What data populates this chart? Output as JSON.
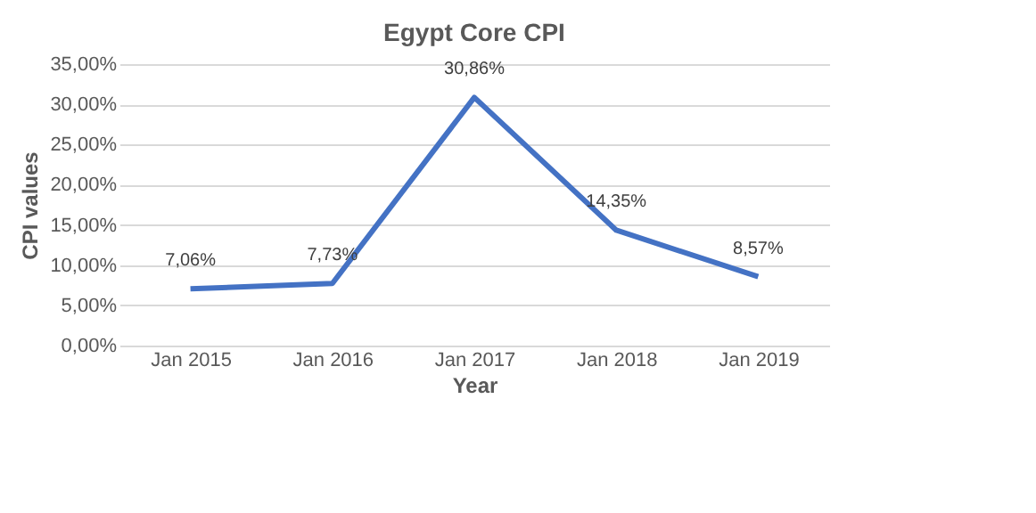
{
  "chart_data": {
    "type": "line",
    "title": "Egypt Core CPI",
    "xlabel": "Year",
    "ylabel": "CPI values",
    "categories": [
      "Jan 2015",
      "Jan 2016",
      "Jan 2017",
      "Jan 2018",
      "Jan 2019"
    ],
    "series": [
      {
        "color": "#4472c4",
        "values": [
          7.06,
          7.73,
          30.86,
          14.35,
          8.57
        ],
        "value_labels": [
          "7,06%",
          "7,73%",
          "30,86%",
          "14,35%",
          "8,57%"
        ]
      }
    ],
    "ylim": [
      0,
      35
    ],
    "yticks": [
      {
        "value": 0,
        "label": "0,00%"
      },
      {
        "value": 5,
        "label": "5,00%"
      },
      {
        "value": 10,
        "label": "10,00%"
      },
      {
        "value": 15,
        "label": "15,00%"
      },
      {
        "value": 20,
        "label": "20,00%"
      },
      {
        "value": 25,
        "label": "25,00%"
      },
      {
        "value": 30,
        "label": "30,00%"
      },
      {
        "value": 35,
        "label": "35,00%"
      }
    ],
    "grid": "y",
    "legend": false,
    "marker": "none",
    "line_style": "solid"
  }
}
